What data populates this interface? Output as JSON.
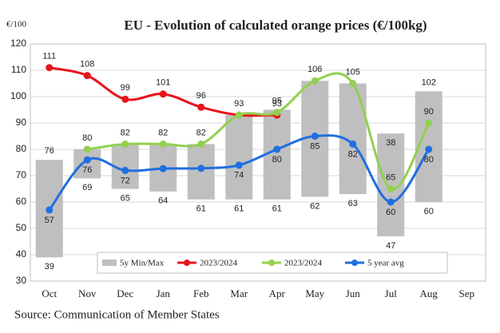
{
  "chart_data": {
    "type": "line",
    "title": "EU  -  Evolution of calculated orange prices (€/100kg)",
    "y_axis_label": "€/100",
    "source": "Source: Communication of Member States",
    "categories": [
      "Oct",
      "Nov",
      "Dec",
      "Jan",
      "Feb",
      "Mar",
      "Apr",
      "May",
      "Jun",
      "Jul",
      "Aug",
      "Sep"
    ],
    "ylim": [
      30,
      120
    ],
    "yticks": [
      30,
      40,
      50,
      60,
      70,
      80,
      90,
      100,
      110,
      120
    ],
    "grid": true,
    "range_bars": {
      "name": "5y Min/Max",
      "color": "#bfbfbf",
      "min": [
        39,
        69,
        65,
        64,
        61,
        61,
        61,
        62,
        63,
        47,
        60,
        null
      ],
      "max": [
        76,
        80,
        82,
        82,
        82,
        93,
        95,
        106,
        105,
        86,
        102,
        null
      ],
      "min_labels": [
        "39",
        "69",
        "65",
        "64",
        "61",
        "61",
        "61",
        "62",
        "63",
        "47",
        "60",
        null
      ],
      "max_labels": [
        "76",
        null,
        null,
        null,
        null,
        null,
        "95",
        null,
        null,
        null,
        "102",
        null
      ]
    },
    "annotations": [
      "38"
    ],
    "series": [
      {
        "name": "2023/2024",
        "color": "#e8141c",
        "values": [
          111,
          108,
          99,
          101,
          96,
          93,
          93,
          null,
          null,
          null,
          null,
          null
        ],
        "value_labels": [
          "111",
          "108",
          "99",
          "101",
          "96",
          "93",
          "93",
          null,
          null,
          null,
          null,
          null
        ]
      },
      {
        "name": "2023/2024",
        "color": "#92d050",
        "values": [
          null,
          80,
          82,
          82,
          82,
          93,
          94,
          106,
          105,
          65,
          90,
          null
        ],
        "value_labels": [
          null,
          "80",
          "82",
          "82",
          "82",
          null,
          null,
          "106",
          "105",
          "65",
          "90",
          null
        ]
      },
      {
        "name": "5 year avg",
        "color": "#1f6fe0",
        "values": [
          57,
          76,
          72,
          72.7,
          72.8,
          74,
          80,
          85,
          82,
          60,
          80,
          null
        ],
        "value_labels": [
          "57",
          "76",
          "72",
          null,
          null,
          "74",
          "80",
          "85",
          "82",
          "60",
          "80",
          null
        ]
      }
    ]
  }
}
